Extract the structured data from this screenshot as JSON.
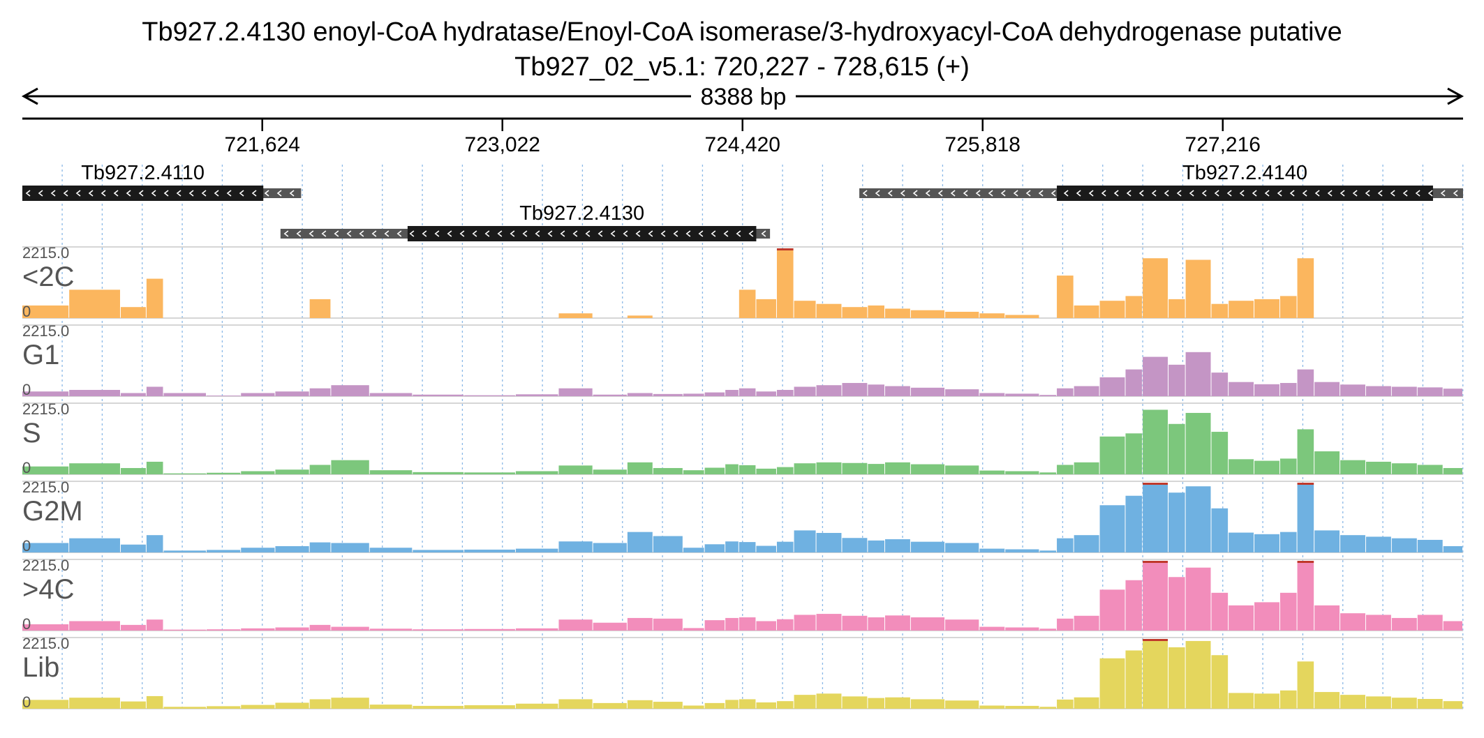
{
  "chart_data": {
    "type": "area",
    "title": "Tb927.2.4130  enoyl-CoA hydratase/Enoyl-CoA isomerase/3-hydroxyacyl-CoA dehydrogenase  putative",
    "subtitle": "Tb927_02_v5.1: 720,227 - 728,615 (+)",
    "span_label": "8388 bp",
    "xlim": [
      720227,
      728615
    ],
    "ticks": [
      {
        "value": 721624,
        "label": "721,624"
      },
      {
        "value": 723022,
        "label": "723,022"
      },
      {
        "value": 724420,
        "label": "724,420"
      },
      {
        "value": 725818,
        "label": "725,818"
      },
      {
        "value": 727216,
        "label": "727,216"
      }
    ],
    "genes": [
      {
        "name": "Tb927.2.4110",
        "strand": "-",
        "utr": [
          720227,
          721850
        ],
        "cds": [
          720227,
          721630
        ]
      },
      {
        "name": "Tb927.2.4130",
        "strand": "-",
        "utr": [
          721730,
          724580
        ],
        "cds": [
          722470,
          724500
        ]
      },
      {
        "name": "Tb927.2.4140",
        "strand": "-",
        "utr": [
          725100,
          728615
        ],
        "cds": [
          726250,
          728440
        ]
      }
    ],
    "x": [
      720227,
      720500,
      720800,
      720950,
      721050,
      721300,
      721500,
      721700,
      721900,
      722025,
      722250,
      722500,
      722800,
      723100,
      723350,
      723550,
      723750,
      723900,
      724075,
      724200,
      724320,
      724400,
      724500,
      724620,
      724720,
      724850,
      725000,
      725150,
      725250,
      725400,
      725600,
      725800,
      725950,
      726150,
      726250,
      726350,
      726500,
      726650,
      726750,
      726900,
      727000,
      727150,
      727250,
      727400,
      727550,
      727650,
      727750,
      727900,
      728050,
      728200,
      728350,
      728500,
      728615
    ],
    "series": [
      {
        "name": "<2C",
        "color": "#fbb65e",
        "ylim": [
          0,
          2215.0
        ],
        "values": [
          400,
          900,
          350,
          1250,
          0,
          0,
          0,
          0,
          600,
          0,
          0,
          0,
          0,
          0,
          150,
          0,
          80,
          0,
          0,
          0,
          0,
          900,
          600,
          2215,
          550,
          450,
          350,
          400,
          300,
          250,
          200,
          150,
          100,
          0,
          1350,
          400,
          550,
          700,
          1900,
          600,
          1850,
          450,
          550,
          600,
          700,
          1900,
          0,
          0,
          0,
          0,
          0,
          0,
          0
        ]
      },
      {
        "name": "G1",
        "color": "#c495c5",
        "ylim": [
          0,
          2215.0
        ],
        "values": [
          150,
          200,
          100,
          300,
          100,
          20,
          100,
          150,
          250,
          350,
          100,
          50,
          30,
          60,
          250,
          50,
          100,
          70,
          80,
          120,
          200,
          250,
          150,
          200,
          300,
          350,
          420,
          370,
          320,
          270,
          220,
          100,
          80,
          40,
          250,
          320,
          600,
          850,
          1250,
          1000,
          1400,
          750,
          450,
          380,
          420,
          850,
          450,
          370,
          320,
          300,
          280,
          240,
          100
        ]
      },
      {
        "name": "S",
        "color": "#7cc77c",
        "ylim": [
          0,
          2215.0
        ],
        "values": [
          250,
          350,
          200,
          400,
          30,
          50,
          100,
          150,
          300,
          450,
          130,
          70,
          60,
          100,
          280,
          150,
          380,
          200,
          130,
          210,
          320,
          290,
          180,
          230,
          350,
          380,
          360,
          330,
          380,
          320,
          280,
          120,
          100,
          60,
          300,
          380,
          1200,
          1300,
          2050,
          1600,
          1950,
          1350,
          480,
          430,
          500,
          1430,
          730,
          450,
          400,
          350,
          300,
          200,
          100
        ]
      },
      {
        "name": "G2M",
        "color": "#6fb1e1",
        "ylim": [
          0,
          2215.0
        ],
        "values": [
          300,
          450,
          250,
          550,
          60,
          80,
          150,
          200,
          320,
          300,
          150,
          80,
          90,
          120,
          350,
          300,
          650,
          520,
          150,
          260,
          350,
          330,
          210,
          340,
          700,
          620,
          460,
          380,
          420,
          340,
          300,
          120,
          100,
          60,
          450,
          550,
          1500,
          1800,
          2215,
          1900,
          2100,
          1400,
          630,
          580,
          650,
          2215,
          700,
          550,
          500,
          450,
          400,
          200,
          120
        ]
      },
      {
        "name": ">4C",
        "color": "#f28dbb",
        "ylim": [
          0,
          2215.0
        ],
        "values": [
          200,
          300,
          180,
          350,
          30,
          40,
          70,
          100,
          180,
          120,
          60,
          40,
          50,
          70,
          350,
          250,
          400,
          380,
          80,
          330,
          400,
          420,
          300,
          360,
          500,
          530,
          470,
          420,
          480,
          420,
          350,
          120,
          100,
          60,
          380,
          470,
          1300,
          1600,
          2215,
          1700,
          2000,
          1200,
          800,
          900,
          1200,
          2215,
          800,
          550,
          500,
          400,
          500,
          300,
          200
        ]
      },
      {
        "name": "Lib",
        "color": "#e4d65d",
        "ylim": [
          0,
          2215.0
        ],
        "values": [
          280,
          350,
          230,
          400,
          60,
          80,
          120,
          190,
          300,
          350,
          130,
          90,
          110,
          160,
          300,
          180,
          270,
          220,
          100,
          180,
          280,
          300,
          200,
          240,
          440,
          480,
          390,
          340,
          360,
          300,
          260,
          100,
          90,
          60,
          290,
          360,
          1600,
          1850,
          2215,
          1950,
          2150,
          1700,
          500,
          480,
          580,
          1500,
          530,
          440,
          390,
          350,
          310,
          240,
          150
        ]
      }
    ],
    "scale_max_label": "2215.0",
    "scale_min_label": "0",
    "grid": true
  }
}
